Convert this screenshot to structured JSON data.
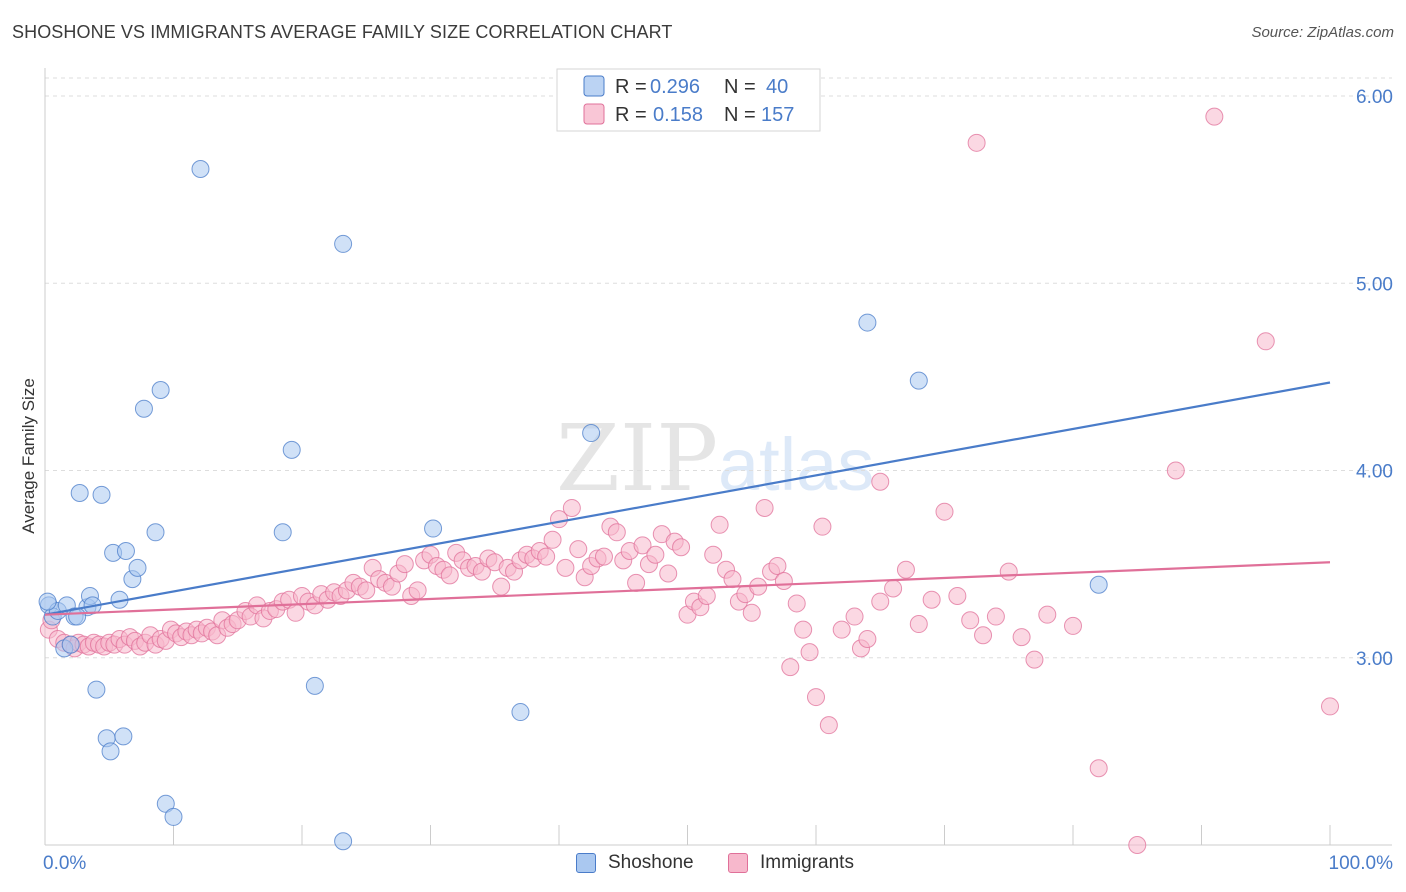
{
  "title": "SHOSHONE VS IMMIGRANTS AVERAGE FAMILY SIZE CORRELATION CHART",
  "source": "Source: ZipAtlas.com",
  "watermark": {
    "zip": "ZIP",
    "atlas": "atlas"
  },
  "chart_data": {
    "type": "scatter",
    "xlabel": "",
    "ylabel": "Average Family Size",
    "xlim": [
      0,
      100
    ],
    "ylim": [
      2.0,
      6.0
    ],
    "x_tick_labels": [
      "0.0%",
      "100.0%"
    ],
    "y_ticks": [
      3.0,
      4.0,
      5.0,
      6.0
    ],
    "y_tick_labels": [
      "3.00",
      "4.00",
      "5.00",
      "6.00"
    ],
    "grid": true,
    "legend_position": "top-center",
    "series": [
      {
        "name": "Shoshone",
        "color": "#4a7cc9",
        "fill": "#aac8f0",
        "stats": {
          "r_label": "R =",
          "r": "0.296",
          "n_label": "N =",
          "n": "40"
        },
        "trend": {
          "x0": 0,
          "y0": 3.23,
          "x1": 100,
          "y1": 4.47
        },
        "points": [
          [
            0.3,
            3.28
          ],
          [
            0.6,
            3.22
          ],
          [
            1.0,
            3.25
          ],
          [
            1.5,
            3.05
          ],
          [
            1.7,
            3.28
          ],
          [
            2.0,
            3.07
          ],
          [
            2.3,
            3.22
          ],
          [
            2.7,
            3.88
          ],
          [
            3.3,
            3.27
          ],
          [
            3.5,
            3.33
          ],
          [
            3.7,
            3.28
          ],
          [
            4.0,
            2.83
          ],
          [
            4.4,
            3.87
          ],
          [
            4.8,
            2.57
          ],
          [
            5.1,
            2.5
          ],
          [
            5.3,
            3.56
          ],
          [
            5.8,
            3.31
          ],
          [
            6.1,
            2.58
          ],
          [
            6.3,
            3.57
          ],
          [
            6.8,
            3.42
          ],
          [
            7.2,
            3.48
          ],
          [
            7.7,
            4.33
          ],
          [
            8.6,
            3.67
          ],
          [
            9.0,
            4.43
          ],
          [
            9.4,
            2.22
          ],
          [
            10.0,
            2.15
          ],
          [
            12.1,
            5.61
          ],
          [
            18.5,
            3.67
          ],
          [
            19.2,
            4.11
          ],
          [
            21.0,
            2.85
          ],
          [
            23.2,
            5.21
          ],
          [
            23.2,
            2.02
          ],
          [
            30.2,
            3.69
          ],
          [
            37.0,
            2.71
          ],
          [
            42.5,
            4.2
          ],
          [
            64.0,
            4.79
          ],
          [
            68.0,
            4.48
          ],
          [
            82.0,
            3.39
          ],
          [
            0.2,
            3.3
          ],
          [
            2.5,
            3.22
          ]
        ]
      },
      {
        "name": "Immigrants",
        "color": "#e07099",
        "fill": "#f7b8cc",
        "stats": {
          "r_label": "R =",
          "r": "0.158",
          "n_label": "N =",
          "n": "157"
        },
        "trend": {
          "x0": 0,
          "y0": 3.23,
          "x1": 100,
          "y1": 3.51
        },
        "points": [
          [
            0.3,
            3.15
          ],
          [
            0.5,
            3.2
          ],
          [
            1.0,
            3.1
          ],
          [
            1.5,
            3.08
          ],
          [
            2.0,
            3.07
          ],
          [
            2.3,
            3.05
          ],
          [
            2.6,
            3.08
          ],
          [
            3.0,
            3.07
          ],
          [
            3.4,
            3.06
          ],
          [
            3.8,
            3.08
          ],
          [
            4.2,
            3.07
          ],
          [
            4.6,
            3.06
          ],
          [
            5.0,
            3.08
          ],
          [
            5.4,
            3.07
          ],
          [
            5.8,
            3.1
          ],
          [
            6.2,
            3.07
          ],
          [
            6.6,
            3.11
          ],
          [
            7.0,
            3.09
          ],
          [
            7.4,
            3.06
          ],
          [
            7.8,
            3.08
          ],
          [
            8.2,
            3.12
          ],
          [
            8.6,
            3.07
          ],
          [
            9.0,
            3.1
          ],
          [
            9.4,
            3.09
          ],
          [
            9.8,
            3.15
          ],
          [
            10.2,
            3.13
          ],
          [
            10.6,
            3.11
          ],
          [
            11.0,
            3.14
          ],
          [
            11.4,
            3.12
          ],
          [
            11.8,
            3.15
          ],
          [
            12.2,
            3.13
          ],
          [
            12.6,
            3.16
          ],
          [
            13.0,
            3.14
          ],
          [
            13.4,
            3.12
          ],
          [
            13.8,
            3.2
          ],
          [
            14.2,
            3.16
          ],
          [
            14.6,
            3.18
          ],
          [
            15.0,
            3.2
          ],
          [
            15.6,
            3.25
          ],
          [
            16.0,
            3.22
          ],
          [
            16.5,
            3.28
          ],
          [
            17.0,
            3.21
          ],
          [
            17.5,
            3.25
          ],
          [
            18.0,
            3.26
          ],
          [
            18.5,
            3.3
          ],
          [
            19.0,
            3.31
          ],
          [
            19.5,
            3.24
          ],
          [
            20.0,
            3.33
          ],
          [
            20.5,
            3.3
          ],
          [
            21.0,
            3.28
          ],
          [
            21.5,
            3.34
          ],
          [
            22.0,
            3.31
          ],
          [
            22.5,
            3.35
          ],
          [
            23.0,
            3.33
          ],
          [
            23.5,
            3.36
          ],
          [
            24.0,
            3.4
          ],
          [
            24.5,
            3.38
          ],
          [
            25.0,
            3.36
          ],
          [
            25.5,
            3.48
          ],
          [
            26.0,
            3.42
          ],
          [
            26.5,
            3.4
          ],
          [
            27.0,
            3.38
          ],
          [
            27.5,
            3.45
          ],
          [
            28.0,
            3.5
          ],
          [
            28.5,
            3.33
          ],
          [
            29.0,
            3.36
          ],
          [
            29.5,
            3.52
          ],
          [
            30.0,
            3.55
          ],
          [
            30.5,
            3.49
          ],
          [
            31.0,
            3.47
          ],
          [
            31.5,
            3.44
          ],
          [
            32.0,
            3.56
          ],
          [
            32.5,
            3.52
          ],
          [
            33.0,
            3.48
          ],
          [
            33.5,
            3.49
          ],
          [
            34.0,
            3.46
          ],
          [
            34.5,
            3.53
          ],
          [
            35.0,
            3.51
          ],
          [
            35.5,
            3.38
          ],
          [
            36.0,
            3.48
          ],
          [
            36.5,
            3.46
          ],
          [
            37.0,
            3.52
          ],
          [
            37.5,
            3.55
          ],
          [
            38.0,
            3.53
          ],
          [
            38.5,
            3.57
          ],
          [
            39.0,
            3.54
          ],
          [
            39.5,
            3.63
          ],
          [
            40.0,
            3.74
          ],
          [
            40.5,
            3.48
          ],
          [
            41.0,
            3.8
          ],
          [
            41.5,
            3.58
          ],
          [
            42.0,
            3.43
          ],
          [
            42.5,
            3.49
          ],
          [
            43.0,
            3.53
          ],
          [
            43.5,
            3.54
          ],
          [
            44.0,
            3.7
          ],
          [
            44.5,
            3.67
          ],
          [
            45.0,
            3.52
          ],
          [
            45.5,
            3.57
          ],
          [
            46.0,
            3.4
          ],
          [
            46.5,
            3.6
          ],
          [
            47.0,
            3.5
          ],
          [
            47.5,
            3.55
          ],
          [
            48.0,
            3.66
          ],
          [
            48.5,
            3.45
          ],
          [
            49.0,
            3.62
          ],
          [
            49.5,
            3.59
          ],
          [
            50.0,
            3.23
          ],
          [
            50.5,
            3.3
          ],
          [
            51.0,
            3.27
          ],
          [
            51.5,
            3.33
          ],
          [
            52.0,
            3.55
          ],
          [
            52.5,
            3.71
          ],
          [
            53.0,
            3.47
          ],
          [
            53.5,
            3.42
          ],
          [
            54.0,
            3.3
          ],
          [
            54.5,
            3.34
          ],
          [
            55.0,
            3.24
          ],
          [
            55.5,
            3.38
          ],
          [
            56.0,
            3.8
          ],
          [
            56.5,
            3.46
          ],
          [
            57.0,
            3.49
          ],
          [
            57.5,
            3.41
          ],
          [
            58.0,
            2.95
          ],
          [
            58.5,
            3.29
          ],
          [
            59.0,
            3.15
          ],
          [
            59.5,
            3.03
          ],
          [
            60.0,
            2.79
          ],
          [
            60.5,
            3.7
          ],
          [
            61.0,
            2.64
          ],
          [
            62.0,
            3.15
          ],
          [
            63.0,
            3.22
          ],
          [
            63.5,
            3.05
          ],
          [
            64.0,
            3.1
          ],
          [
            65.0,
            3.3
          ],
          [
            66.0,
            3.37
          ],
          [
            67.0,
            3.47
          ],
          [
            68.0,
            3.18
          ],
          [
            69.0,
            3.31
          ],
          [
            70.0,
            3.78
          ],
          [
            71.0,
            3.33
          ],
          [
            72.0,
            3.2
          ],
          [
            73.0,
            3.12
          ],
          [
            74.0,
            3.22
          ],
          [
            75.0,
            3.46
          ],
          [
            76.0,
            3.11
          ],
          [
            77.0,
            2.99
          ],
          [
            78.0,
            3.23
          ],
          [
            80.0,
            3.17
          ],
          [
            82.0,
            2.41
          ],
          [
            85.0,
            2.0
          ],
          [
            88.0,
            4.0
          ],
          [
            91.0,
            5.89
          ],
          [
            95.0,
            4.69
          ],
          [
            100.0,
            2.74
          ],
          [
            72.5,
            5.75
          ],
          [
            65.0,
            3.94
          ]
        ]
      }
    ]
  }
}
